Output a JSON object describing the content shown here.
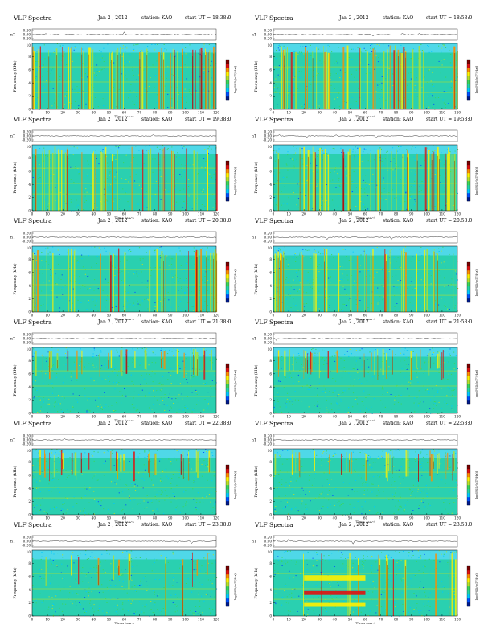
{
  "app_title": "VLF Spectra",
  "colormap": [
    "#001a8c",
    "#0050ff",
    "#00c8ff",
    "#22d6a6",
    "#3ad65a",
    "#b4e02a",
    "#fff000",
    "#ff8c00",
    "#e01010",
    "#7a0000"
  ],
  "chart_data": [
    {
      "type": "heatmap",
      "app_title": "VLF Spectra",
      "date": "Jan 2 , 2012",
      "station": "station: KAO",
      "start": "start UT = 18:38:0",
      "xlabel": "Time (sec)",
      "ylabel": "Frequency (kHz)",
      "ts_label": "nT",
      "cb_label": "log(PSD/(nT²/Hz))",
      "ts_ticks": [
        "0.20",
        "0.00",
        "-0.20"
      ],
      "xlim": [
        0,
        120
      ],
      "ylim": [
        0,
        10
      ],
      "xticks": [
        0,
        10,
        20,
        30,
        40,
        50,
        60,
        70,
        80,
        90,
        100,
        110,
        120
      ],
      "yticks": [
        0,
        2,
        4,
        6,
        8
      ],
      "grid": false,
      "seed": 11,
      "profile": "strong"
    },
    {
      "type": "heatmap",
      "app_title": "VLF Spectra",
      "date": "Jan 2 , 2012",
      "station": "station: KAO",
      "start": "start UT = 18:58:0",
      "xlabel": "Time (sec)",
      "ylabel": "Frequency (kHz)",
      "ts_label": "nT",
      "cb_label": "log(PSD/(nT²/Hz))",
      "ts_ticks": [
        "0.20",
        "0.00",
        "-0.20"
      ],
      "xlim": [
        0,
        120
      ],
      "ylim": [
        0,
        10
      ],
      "xticks": [
        0,
        10,
        20,
        30,
        40,
        50,
        60,
        70,
        80,
        90,
        100,
        110,
        120
      ],
      "yticks": [
        0,
        2,
        4,
        6,
        8
      ],
      "grid": false,
      "seed": 12,
      "profile": "strong"
    },
    {
      "type": "heatmap",
      "app_title": "VLF Spectra",
      "date": "Jan 2 , 2012",
      "station": "station: KAO",
      "start": "start UT = 19:38:0",
      "xlabel": "Time (sec)",
      "ylabel": "Frequency (kHz)",
      "ts_label": "nT",
      "cb_label": "log(PSD/(nT²/Hz))",
      "ts_ticks": [
        "0.20",
        "0.00",
        "-0.20"
      ],
      "xlim": [
        0,
        120
      ],
      "ylim": [
        0,
        10
      ],
      "xticks": [
        0,
        10,
        20,
        30,
        40,
        50,
        60,
        70,
        80,
        90,
        100,
        110,
        120
      ],
      "yticks": [
        0,
        2,
        4,
        6,
        8
      ],
      "grid": false,
      "seed": 21,
      "profile": "strong"
    },
    {
      "type": "heatmap",
      "app_title": "VLF Spectra",
      "date": "Jan 2 , 2012",
      "station": "station: KAO",
      "start": "start UT = 19:58:0",
      "xlabel": "Time (sec)",
      "ylabel": "Frequency (kHz)",
      "ts_label": "nT",
      "cb_label": "log(PSD/(nT²/Hz))",
      "ts_ticks": [
        "0.20",
        "0.00",
        "-0.20"
      ],
      "xlim": [
        0,
        120
      ],
      "ylim": [
        0,
        10
      ],
      "xticks": [
        0,
        10,
        20,
        30,
        40,
        50,
        60,
        70,
        80,
        90,
        100,
        110,
        120
      ],
      "yticks": [
        0,
        2,
        4,
        6,
        8
      ],
      "grid": false,
      "seed": 22,
      "profile": "strong"
    },
    {
      "type": "heatmap",
      "app_title": "VLF Spectra",
      "date": "Jan 2 , 2012",
      "station": "station: KAO",
      "start": "start UT = 20:38:0",
      "xlabel": "Time (sec)",
      "ylabel": "Frequency (kHz)",
      "ts_label": "nT",
      "cb_label": "log(PSD/(nT²/Hz))",
      "ts_ticks": [
        "0.20",
        "0.00",
        "-0.20"
      ],
      "xlim": [
        0,
        120
      ],
      "ylim": [
        0,
        10
      ],
      "xticks": [
        0,
        10,
        20,
        30,
        40,
        50,
        60,
        70,
        80,
        90,
        100,
        110,
        120
      ],
      "yticks": [
        0,
        2,
        4,
        6,
        8
      ],
      "grid": false,
      "seed": 31,
      "profile": "medium"
    },
    {
      "type": "heatmap",
      "app_title": "VLF Spectra",
      "date": "Jan 2 , 2012",
      "station": "station: KAO",
      "start": "start UT = 20:58:0",
      "xlabel": "Time (sec)",
      "ylabel": "Frequency (kHz)",
      "ts_label": "nT",
      "cb_label": "log(PSD/(nT²/Hz))",
      "ts_ticks": [
        "0.20",
        "0.00",
        "-0.20"
      ],
      "xlim": [
        0,
        120
      ],
      "ylim": [
        0,
        10
      ],
      "xticks": [
        0,
        10,
        20,
        30,
        40,
        50,
        60,
        70,
        80,
        90,
        100,
        110,
        120
      ],
      "yticks": [
        0,
        2,
        4,
        6,
        8
      ],
      "grid": false,
      "seed": 32,
      "profile": "medium"
    },
    {
      "type": "heatmap",
      "app_title": "VLF Spectra",
      "date": "Jan 2 , 2012",
      "station": "station: KAO",
      "start": "start UT = 21:38:0",
      "xlabel": "Time (sec)",
      "ylabel": "Frequency (kHz)",
      "ts_label": "nT",
      "cb_label": "log(PSD/(nT²/Hz))",
      "ts_ticks": [
        "0.20",
        "0.00",
        "-0.20"
      ],
      "xlim": [
        0,
        120
      ],
      "ylim": [
        0,
        10
      ],
      "xticks": [
        0,
        10,
        20,
        30,
        40,
        50,
        60,
        70,
        80,
        90,
        100,
        110,
        120
      ],
      "yticks": [
        0,
        2,
        4,
        6,
        8
      ],
      "grid": false,
      "seed": 41,
      "profile": "upper"
    },
    {
      "type": "heatmap",
      "app_title": "VLF Spectra",
      "date": "Jan 2 , 2012",
      "station": "station: KAO",
      "start": "start UT = 21:58:0",
      "xlabel": "Time (sec)",
      "ylabel": "Frequency (kHz)",
      "ts_label": "nT",
      "cb_label": "log(PSD/(nT²/Hz))",
      "ts_ticks": [
        "0.20",
        "0.00",
        "-0.20"
      ],
      "xlim": [
        0,
        120
      ],
      "ylim": [
        0,
        10
      ],
      "xticks": [
        0,
        10,
        20,
        30,
        40,
        50,
        60,
        70,
        80,
        90,
        100,
        110,
        120
      ],
      "yticks": [
        0,
        2,
        4,
        6,
        8
      ],
      "grid": false,
      "seed": 42,
      "profile": "upper"
    },
    {
      "type": "heatmap",
      "app_title": "VLF Spectra",
      "date": "Jan 2 , 2012",
      "station": "station: KAO",
      "start": "start UT = 22:38:0",
      "xlabel": "Time (sec)",
      "ylabel": "Frequency (kHz)",
      "ts_label": "nT",
      "cb_label": "log(PSD/(nT²/Hz))",
      "ts_ticks": [
        "0.20",
        "0.00",
        "-0.20"
      ],
      "xlim": [
        0,
        120
      ],
      "ylim": [
        0,
        10
      ],
      "xticks": [
        0,
        10,
        20,
        30,
        40,
        50,
        60,
        70,
        80,
        90,
        100,
        110,
        120
      ],
      "yticks": [
        0,
        2,
        4,
        6,
        8
      ],
      "grid": false,
      "seed": 51,
      "profile": "upper"
    },
    {
      "type": "heatmap",
      "app_title": "VLF Spectra",
      "date": "Jan 2 , 2012",
      "station": "station: KAO",
      "start": "start UT = 22:58:0",
      "xlabel": "Time (sec)",
      "ylabel": "Frequency (kHz)",
      "ts_label": "nT",
      "cb_label": "log(PSD/(nT²/Hz))",
      "ts_ticks": [
        "0.20",
        "0.00",
        "-0.20"
      ],
      "xlim": [
        0,
        120
      ],
      "ylim": [
        0,
        10
      ],
      "xticks": [
        0,
        10,
        20,
        30,
        40,
        50,
        60,
        70,
        80,
        90,
        100,
        110,
        120
      ],
      "yticks": [
        0,
        2,
        4,
        6,
        8
      ],
      "grid": false,
      "seed": 52,
      "profile": "upper"
    },
    {
      "type": "heatmap",
      "app_title": "VLF Spectra",
      "date": "Jan 2 , 2012",
      "station": "station: KAO",
      "start": "start UT = 23:38:0",
      "xlabel": "Time (sec)",
      "ylabel": "Frequency (kHz)",
      "ts_label": "nT",
      "cb_label": "log(PSD/(nT²/Hz))",
      "ts_ticks": [
        "0.20",
        "0.00",
        "-0.20"
      ],
      "xlim": [
        0,
        120
      ],
      "ylim": [
        0,
        10
      ],
      "xticks": [
        0,
        10,
        20,
        30,
        40,
        50,
        60,
        70,
        80,
        90,
        100,
        110,
        120
      ],
      "yticks": [
        0,
        2,
        4,
        6,
        8
      ],
      "grid": false,
      "seed": 61,
      "profile": "weak"
    },
    {
      "type": "heatmap",
      "app_title": "VLF Spectra",
      "date": "Jan 2 , 2012",
      "station": "station: KAO",
      "start": "start UT = 23:58:0",
      "xlabel": "Time (sec)",
      "ylabel": "Frequency (kHz)",
      "ts_label": "nT",
      "cb_label": "log(PSD/(nT²/Hz))",
      "ts_ticks": [
        "0.20",
        "0.00",
        "-0.20"
      ],
      "xlim": [
        0,
        120
      ],
      "ylim": [
        0,
        10
      ],
      "xticks": [
        0,
        10,
        20,
        30,
        40,
        50,
        60,
        70,
        80,
        90,
        100,
        110,
        120
      ],
      "yticks": [
        0,
        2,
        4,
        6,
        8
      ],
      "grid": false,
      "seed": 62,
      "profile": "bands",
      "bands": [
        {
          "x_range": [
            20,
            60
          ],
          "y_range": [
            5.4,
            6.2
          ],
          "level": "high"
        },
        {
          "x_range": [
            20,
            60
          ],
          "y_range": [
            3.2,
            3.8
          ],
          "level": "very-high"
        },
        {
          "x_range": [
            20,
            60
          ],
          "y_range": [
            1.4,
            2.0
          ],
          "level": "high"
        }
      ]
    }
  ]
}
